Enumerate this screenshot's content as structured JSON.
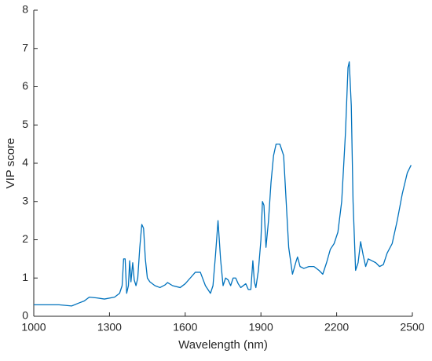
{
  "chart_data": {
    "type": "line",
    "xlabel": "Wavelength (nm)",
    "ylabel": "VIP score",
    "color": "#0072bd",
    "x": [
      1000,
      1050,
      1100,
      1150,
      1180,
      1200,
      1220,
      1250,
      1280,
      1320,
      1340,
      1350,
      1356,
      1362,
      1368,
      1375,
      1380,
      1385,
      1392,
      1398,
      1405,
      1412,
      1420,
      1428,
      1435,
      1442,
      1450,
      1460,
      1480,
      1500,
      1520,
      1530,
      1550,
      1580,
      1600,
      1620,
      1640,
      1660,
      1680,
      1700,
      1710,
      1720,
      1730,
      1740,
      1750,
      1760,
      1770,
      1780,
      1790,
      1800,
      1810,
      1820,
      1840,
      1850,
      1860,
      1868,
      1874,
      1880,
      1890,
      1900,
      1906,
      1912,
      1920,
      1930,
      1940,
      1950,
      1960,
      1975,
      1990,
      2000,
      2010,
      2025,
      2040,
      2045,
      2055,
      2070,
      2090,
      2110,
      2130,
      2145,
      2160,
      2175,
      2190,
      2205,
      2220,
      2235,
      2245,
      2250,
      2258,
      2265,
      2275,
      2285,
      2295,
      2305,
      2315,
      2325,
      2340,
      2355,
      2370,
      2385,
      2400,
      2420,
      2440,
      2460,
      2480,
      2495
    ],
    "values": [
      0.3,
      0.3,
      0.3,
      0.27,
      0.35,
      0.4,
      0.5,
      0.48,
      0.45,
      0.5,
      0.6,
      0.8,
      1.5,
      1.5,
      0.6,
      0.8,
      1.45,
      0.9,
      1.4,
      0.95,
      0.8,
      1.0,
      1.8,
      2.4,
      2.3,
      1.5,
      1.0,
      0.9,
      0.8,
      0.75,
      0.82,
      0.88,
      0.8,
      0.75,
      0.85,
      1.0,
      1.15,
      1.15,
      0.8,
      0.6,
      0.8,
      1.6,
      2.5,
      1.5,
      0.8,
      1.0,
      0.95,
      0.8,
      1.0,
      1.0,
      0.85,
      0.75,
      0.85,
      0.7,
      0.7,
      1.45,
      0.9,
      0.75,
      1.2,
      2.0,
      3.0,
      2.9,
      1.8,
      2.5,
      3.5,
      4.2,
      4.5,
      4.5,
      4.2,
      3.0,
      1.8,
      1.1,
      1.45,
      1.55,
      1.3,
      1.25,
      1.3,
      1.3,
      1.2,
      1.1,
      1.4,
      1.75,
      1.9,
      2.2,
      3.0,
      4.8,
      6.5,
      6.65,
      5.5,
      3.0,
      1.2,
      1.4,
      1.95,
      1.6,
      1.3,
      1.5,
      1.45,
      1.4,
      1.3,
      1.35,
      1.65,
      1.9,
      2.5,
      3.2,
      3.75,
      3.95
    ],
    "xlim": [
      1000,
      2500
    ],
    "xticks": [
      1000,
      1300,
      1600,
      1900,
      2200,
      2500
    ],
    "ylim": [
      0,
      8
    ],
    "yticks": [
      0,
      1,
      2,
      3,
      4,
      5,
      6,
      7,
      8
    ]
  }
}
